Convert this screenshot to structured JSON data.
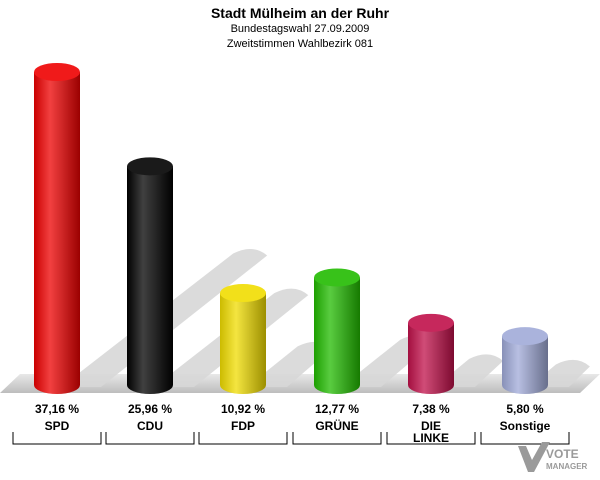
{
  "header": {
    "title": "Stadt Mülheim an der Ruhr",
    "subtitle1": "Bundestagswahl 27.09.2009",
    "subtitle2": "Zweitstimmen Wahlbezirk 081"
  },
  "chart_data": {
    "type": "bar",
    "title": "Stadt Mülheim an der Ruhr",
    "categories": [
      "SPD",
      "CDU",
      "FDP",
      "GRÜNE",
      "DIE LINKE",
      "Sonstige"
    ],
    "category_lines": [
      [
        "SPD"
      ],
      [
        "CDU"
      ],
      [
        "FDP"
      ],
      [
        "GRÜNE"
      ],
      [
        "DIE",
        "LINKE"
      ],
      [
        "Sonstige"
      ]
    ],
    "values": [
      37.16,
      25.96,
      10.92,
      12.77,
      7.38,
      5.8
    ],
    "value_labels": [
      "37,16 %",
      "25,96 %",
      "10,92 %",
      "12,77 %",
      "7,38 %",
      "5,80 %"
    ],
    "colors": [
      "#ee0000",
      "#000000",
      "#f0dc00",
      "#22bb00",
      "#c0104a",
      "#a0aad8"
    ],
    "ylim": [
      0,
      40
    ],
    "grid": false,
    "legend": "none"
  },
  "logo": {
    "line1": "VOTE",
    "line2": "MANAGER"
  }
}
